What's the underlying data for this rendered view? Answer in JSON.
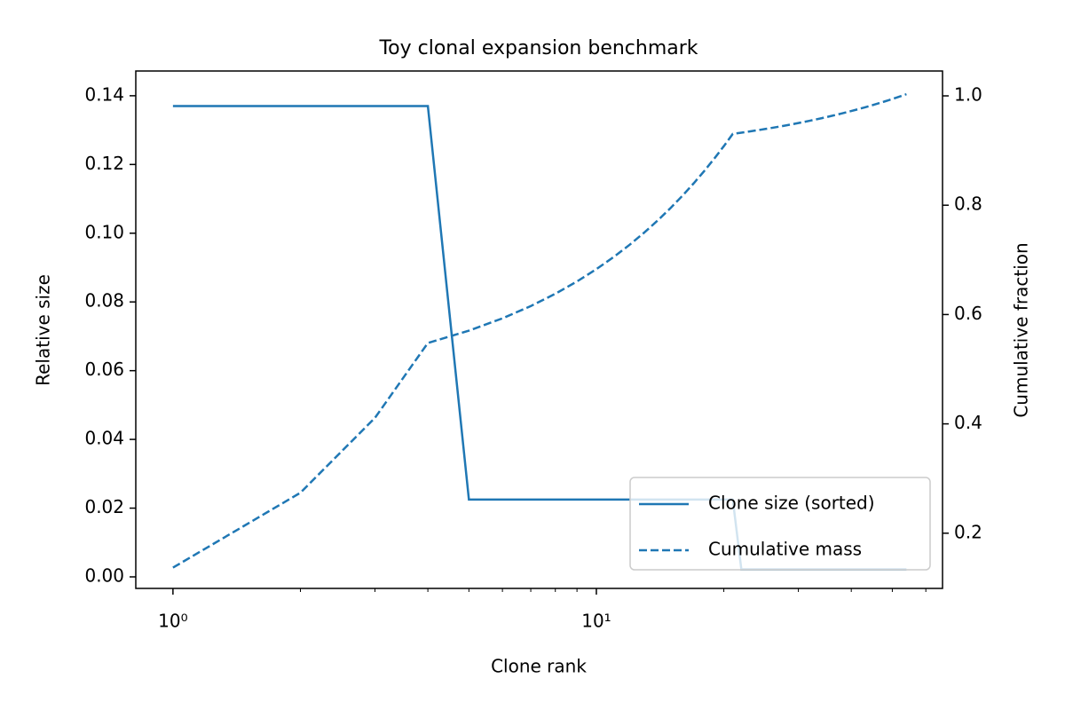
{
  "chart_data": {
    "type": "line",
    "title": "Toy clonal expansion benchmark",
    "x_label": "Clone rank",
    "y_label": "Relative size",
    "y2_label": "Cumulative fraction",
    "x_scale": "log",
    "legend": "lower right",
    "grid": false,
    "x": [
      1,
      2,
      3,
      4,
      5,
      6,
      7,
      8,
      9,
      10,
      11,
      12,
      13,
      14,
      15,
      16,
      17,
      18,
      19,
      20,
      21,
      22,
      23,
      24,
      25,
      26,
      27,
      28,
      29,
      30,
      31,
      32,
      33,
      34,
      35,
      36,
      37,
      38,
      39,
      40,
      41,
      42,
      43,
      44,
      45,
      46,
      47,
      48,
      49,
      50,
      51,
      52,
      53,
      54
    ],
    "series": [
      {
        "name": "Clone size (sorted)",
        "color": "#1f77b4",
        "linestyle": "solid",
        "values": [
          0.137,
          0.137,
          0.137,
          0.137,
          0.0225,
          0.0225,
          0.0225,
          0.0225,
          0.0225,
          0.0225,
          0.0225,
          0.0225,
          0.0225,
          0.0225,
          0.0225,
          0.0225,
          0.0225,
          0.0225,
          0.0225,
          0.0225,
          0.0225,
          0.0022,
          0.0022,
          0.0022,
          0.0022,
          0.0022,
          0.0022,
          0.0022,
          0.0022,
          0.0022,
          0.0022,
          0.0022,
          0.0022,
          0.0022,
          0.0022,
          0.0022,
          0.0022,
          0.0022,
          0.0022,
          0.0022,
          0.0022,
          0.0022,
          0.0022,
          0.0022,
          0.0022,
          0.0022,
          0.0022,
          0.0022,
          0.0022,
          0.0022,
          0.0022,
          0.0022,
          0.0022,
          0.0022
        ]
      },
      {
        "name": "Cumulative mass",
        "color": "#1f77b4",
        "linestyle": "dashed",
        "axis": "y2",
        "values": [
          0.137,
          0.274,
          0.411,
          0.548,
          0.5705,
          0.593,
          0.6155,
          0.638,
          0.6605,
          0.683,
          0.7055,
          0.728,
          0.7505,
          0.773,
          0.7955,
          0.818,
          0.8405,
          0.863,
          0.8855,
          0.908,
          0.9305,
          0.9327,
          0.9349,
          0.9371,
          0.9393,
          0.9415,
          0.9437,
          0.9459,
          0.9481,
          0.9503,
          0.9525,
          0.9547,
          0.9569,
          0.9591,
          0.9613,
          0.9635,
          0.9657,
          0.9679,
          0.9701,
          0.9723,
          0.9745,
          0.9767,
          0.9789,
          0.9811,
          0.9833,
          0.9855,
          0.9877,
          0.9899,
          0.9921,
          0.9943,
          0.9965,
          0.9987,
          1.0009,
          1.0031
        ]
      }
    ],
    "xlim": [
      0.817,
      65.7
    ],
    "xticks": [
      {
        "value": 1,
        "label": "10⁰"
      },
      {
        "value": 10,
        "label": "10¹"
      }
    ],
    "xminorticks": [
      2,
      3,
      4,
      5,
      6,
      7,
      8,
      9,
      20,
      30,
      40,
      50,
      60
    ],
    "ylim": [
      -0.00336,
      0.1472
    ],
    "yticks": [
      {
        "value": 0,
        "label": "0.00"
      },
      {
        "value": 0.02,
        "label": "0.02"
      },
      {
        "value": 0.04,
        "label": "0.04"
      },
      {
        "value": 0.06,
        "label": "0.06"
      },
      {
        "value": 0.08,
        "label": "0.08"
      },
      {
        "value": 0.1,
        "label": "0.10"
      },
      {
        "value": 0.12,
        "label": "0.12"
      },
      {
        "value": 0.14,
        "label": "0.14"
      }
    ],
    "y2lim": [
      0.099,
      1.0455
    ],
    "y2ticks": [
      0.2,
      0.4,
      0.6,
      0.8,
      {
        "value": 1,
        "label": "1.0"
      }
    ]
  }
}
